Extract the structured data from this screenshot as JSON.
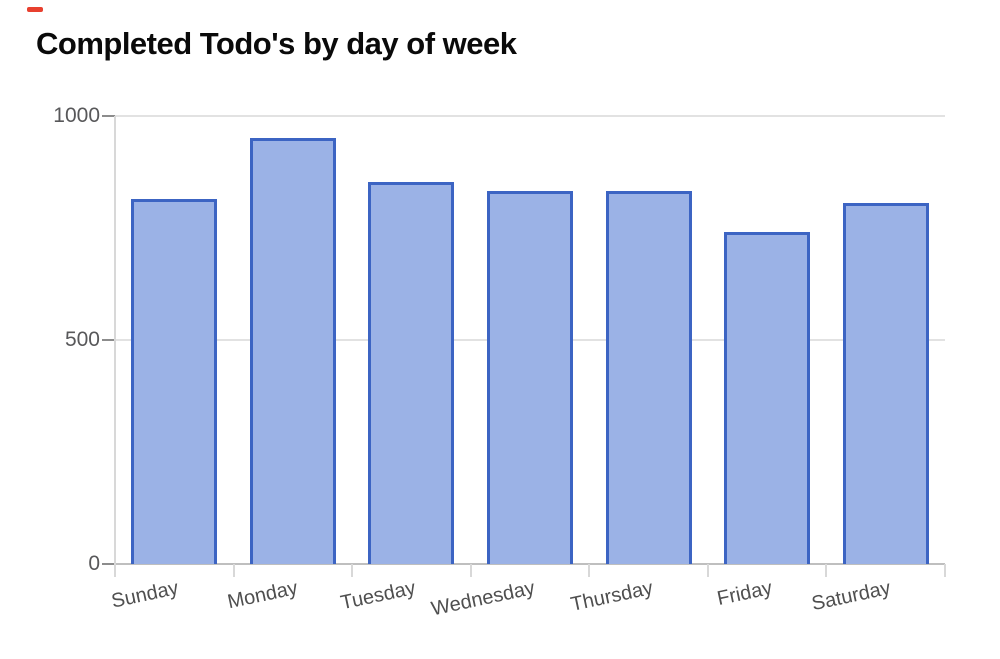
{
  "page": {
    "background": "#ffffff",
    "red_mark_color": "#e8402f"
  },
  "chart_data": {
    "type": "bar",
    "title": "Completed Todo's by day of week",
    "categories": [
      "Sunday",
      "Monday",
      "Tuesday",
      "Wednesday",
      "Thursday",
      "Friday",
      "Saturday"
    ],
    "values": [
      815,
      950,
      853,
      832,
      833,
      740,
      806
    ],
    "xlabel": "",
    "ylabel": "",
    "ylim": [
      0,
      1000
    ],
    "yticks": [
      0,
      500,
      1000
    ],
    "ytick_labels": [
      "0",
      "500",
      "1000"
    ],
    "grid": true,
    "legend": "none",
    "x_label_rotation_deg": -12,
    "colors": {
      "title": "#0a0a0a",
      "bar_fill": "#9bb2e6",
      "bar_border": "#3c64c3",
      "gridline": "#e2e2e2",
      "baseline": "#bfbfbf",
      "axis_line": "#d8d8d8",
      "y_tick": "#8c8c8c",
      "y_label": "#58585a",
      "x_label": "#4f4f4f"
    }
  }
}
